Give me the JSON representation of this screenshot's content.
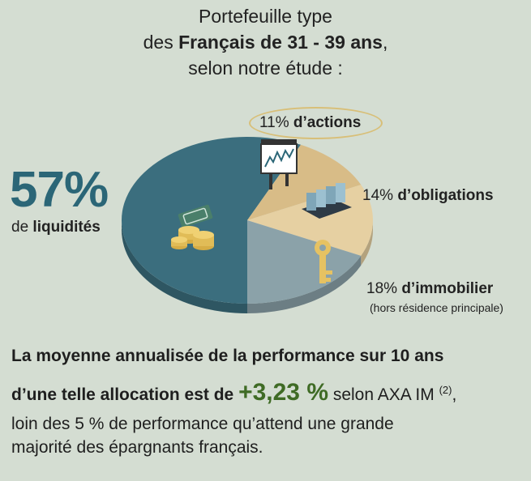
{
  "title": {
    "line1": "Portefeuille type",
    "line2_prefix": "des ",
    "line2_bold": "Français de 31 - 39 ans",
    "line2_suffix": ",",
    "line3": "selon notre étude :"
  },
  "chart_data": {
    "type": "pie",
    "categories": [
      "liquidités",
      "actions",
      "obligations",
      "immobilier"
    ],
    "values": [
      57,
      11,
      14,
      18
    ],
    "colors": [
      "#3b6e7e",
      "#d8bc87",
      "#e6d0a2",
      "#8ba2a9"
    ],
    "icons": [
      "money-coins-icon",
      "stock-chart-board-icon",
      "bond-stacks-icon",
      "key-icon"
    ]
  },
  "labels": {
    "liquidites_pct": "57%",
    "liquidites_prefix": "de ",
    "liquidites_bold": "liquidités",
    "actions_pct": "11% ",
    "actions_bold": "d’actions",
    "obligations_pct": "14% ",
    "obligations_bold": "d’obligations",
    "immobilier_pct": "18% ",
    "immobilier_bold": "d’immobilier",
    "immobilier_note": "(hors résidence principale)"
  },
  "paragraph": {
    "line1": "La moyenne annualisée de la performance sur 10 ans",
    "line2_bold": "d’une telle allocation est de ",
    "line2_perf": "+3,23 %",
    "line2_rest": " selon AXA IM ",
    "line2_sup": "(2)",
    "line2_end": ",",
    "line3": "loin des 5 % de performance qu’attend une grande",
    "line4": "majorité des épargnants français."
  }
}
